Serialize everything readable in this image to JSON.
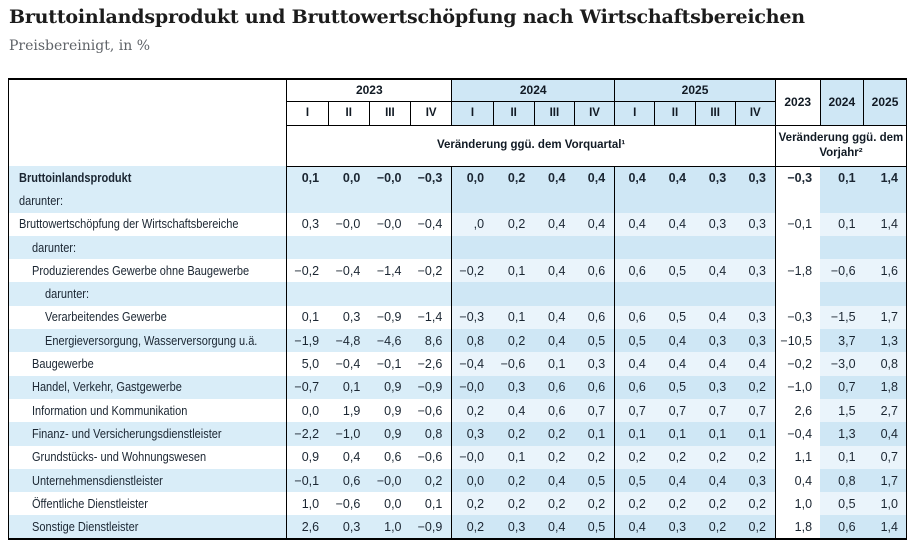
{
  "page": {
    "title": "Bruttoinlandsprodukt und Bruttowertschöpfung nach Wirtschaftsbereichen",
    "subtitle": "Preisbereinigt, in %"
  },
  "colors": {
    "header_blue": "#cfe7f5",
    "zebra_blue": "#d9edf8",
    "pale_blue": "#eaf4fb",
    "border_black": "#000000",
    "text": "#1b2632",
    "subtitle_gray": "#5f6368"
  },
  "table": {
    "quarter_groups": [
      {
        "year": "2023",
        "quarters": [
          "I",
          "II",
          "III",
          "IV"
        ],
        "highlighted": false
      },
      {
        "year": "2024",
        "quarters": [
          "I",
          "II",
          "III",
          "IV"
        ],
        "highlighted": true
      },
      {
        "year": "2025",
        "quarters": [
          "I",
          "II",
          "III",
          "IV"
        ],
        "highlighted": true
      }
    ],
    "annual_years": [
      {
        "year": "2023",
        "highlighted": false
      },
      {
        "year": "2024",
        "highlighted": true
      },
      {
        "year": "2025",
        "highlighted": true
      }
    ],
    "quarter_note": "Veränderung ggü. dem Vorquartal¹",
    "annual_note": "Veränderung ggü. dem Vorjahr²",
    "rows": [
      {
        "label": "Bruttoinlandsprodukt",
        "indent": 0,
        "bold": true,
        "shaded": true,
        "q2023": [
          "0,1",
          "0,0",
          "−0,0",
          "−0,3"
        ],
        "q2024": [
          "0,0",
          "0,2",
          "0,4",
          "0,4"
        ],
        "q2025": [
          "0,4",
          "0,4",
          "0,3",
          "0,3"
        ],
        "annual": [
          "−0,3",
          "0,1",
          "1,4"
        ]
      },
      {
        "label": "darunter:",
        "indent": 0,
        "bold": false,
        "shaded": true,
        "q2023": null,
        "q2024": null,
        "q2025": null,
        "annual": null
      },
      {
        "label": "Bruttowertschöpfung der Wirtschaftsbereiche",
        "indent": 0,
        "bold": false,
        "shaded": false,
        "q2023": [
          "0,3",
          "−0,0",
          "−0,0",
          "−0,4"
        ],
        "q2024": [
          ",0",
          "0,2",
          "0,4",
          "0,4"
        ],
        "q2025": [
          "0,4",
          "0,4",
          "0,3",
          "0,3"
        ],
        "annual": [
          "−0,1",
          "0,1",
          "1,4"
        ]
      },
      {
        "label": "darunter:",
        "indent": 1,
        "bold": false,
        "shaded": true,
        "q2023": null,
        "q2024": null,
        "q2025": null,
        "annual": null
      },
      {
        "label": "Produzierendes Gewerbe ohne Baugewerbe",
        "indent": 1,
        "bold": false,
        "shaded": false,
        "q2023": [
          "−0,2",
          "−0,4",
          "−1,4",
          "−0,2"
        ],
        "q2024": [
          "−0,2",
          "0,1",
          "0,4",
          "0,6"
        ],
        "q2025": [
          "0,6",
          "0,5",
          "0,4",
          "0,3"
        ],
        "annual": [
          "−1,8",
          "−0,6",
          "1,6"
        ]
      },
      {
        "label": "darunter:",
        "indent": 2,
        "bold": false,
        "shaded": true,
        "q2023": null,
        "q2024": null,
        "q2025": null,
        "annual": null
      },
      {
        "label": "Verarbeitendes Gewerbe",
        "indent": 2,
        "bold": false,
        "shaded": false,
        "q2023": [
          "0,1",
          "0,3",
          "−0,9",
          "−1,4"
        ],
        "q2024": [
          "−0,3",
          "0,1",
          "0,4",
          "0,6"
        ],
        "q2025": [
          "0,6",
          "0,5",
          "0,4",
          "0,3"
        ],
        "annual": [
          "−0,3",
          "−1,5",
          "1,7"
        ]
      },
      {
        "label": "Energieversorgung, Wasserversorgung u.ä.",
        "indent": 2,
        "bold": false,
        "shaded": true,
        "q2023": [
          "−1,9",
          "−4,8",
          "−4,6",
          "8,6"
        ],
        "q2024": [
          "0,8",
          "0,2",
          "0,4",
          "0,5"
        ],
        "q2025": [
          "0,5",
          "0,4",
          "0,3",
          "0,3"
        ],
        "annual": [
          "−10,5",
          "3,7",
          "1,3"
        ]
      },
      {
        "label": "Baugewerbe",
        "indent": 1,
        "bold": false,
        "shaded": false,
        "q2023": [
          "5,0",
          "−0,4",
          "−0,1",
          "−2,6"
        ],
        "q2024": [
          "−0,4",
          "−0,6",
          "0,1",
          "0,3"
        ],
        "q2025": [
          "0,4",
          "0,4",
          "0,4",
          "0,4"
        ],
        "annual": [
          "−0,2",
          "−3,0",
          "0,8"
        ]
      },
      {
        "label": "Handel, Verkehr, Gastgewerbe",
        "indent": 1,
        "bold": false,
        "shaded": true,
        "q2023": [
          "−0,7",
          "0,1",
          "0,9",
          "−0,9"
        ],
        "q2024": [
          "−0,0",
          "0,3",
          "0,6",
          "0,6"
        ],
        "q2025": [
          "0,6",
          "0,5",
          "0,3",
          "0,2"
        ],
        "annual": [
          "−1,0",
          "0,7",
          "1,8"
        ]
      },
      {
        "label": "Information und Kommunikation",
        "indent": 1,
        "bold": false,
        "shaded": false,
        "q2023": [
          "0,0",
          "1,9",
          "0,9",
          "−0,6"
        ],
        "q2024": [
          "0,2",
          "0,4",
          "0,6",
          "0,7"
        ],
        "q2025": [
          "0,7",
          "0,7",
          "0,7",
          "0,7"
        ],
        "annual": [
          "2,6",
          "1,5",
          "2,7"
        ]
      },
      {
        "label": "Finanz- und Versicherungsdienstleister",
        "indent": 1,
        "bold": false,
        "shaded": true,
        "q2023": [
          "−2,2",
          "−1,0",
          "0,9",
          "0,8"
        ],
        "q2024": [
          "0,3",
          "0,2",
          "0,2",
          "0,1"
        ],
        "q2025": [
          "0,1",
          "0,1",
          "0,1",
          "0,1"
        ],
        "annual": [
          "−0,4",
          "1,3",
          "0,4"
        ]
      },
      {
        "label": "Grundstücks- und Wohnungswesen",
        "indent": 1,
        "bold": false,
        "shaded": false,
        "q2023": [
          "0,9",
          "0,4",
          "0,6",
          "−0,6"
        ],
        "q2024": [
          "−0,0",
          "0,1",
          "0,2",
          "0,2"
        ],
        "q2025": [
          "0,2",
          "0,2",
          "0,2",
          "0,2"
        ],
        "annual": [
          "1,1",
          "0,1",
          "0,7"
        ]
      },
      {
        "label": "Unternehmensdienstleister",
        "indent": 1,
        "bold": false,
        "shaded": true,
        "q2023": [
          "−0,1",
          "0,6",
          "−0,0",
          "0,2"
        ],
        "q2024": [
          "0,0",
          "0,2",
          "0,4",
          "0,5"
        ],
        "q2025": [
          "0,5",
          "0,4",
          "0,4",
          "0,3"
        ],
        "annual": [
          "0,4",
          "0,8",
          "1,7"
        ]
      },
      {
        "label": "Öffentliche Dienstleister",
        "indent": 1,
        "bold": false,
        "shaded": false,
        "q2023": [
          "1,0",
          "−0,6",
          "0,0",
          "0,1"
        ],
        "q2024": [
          "0,2",
          "0,2",
          "0,2",
          "0,2"
        ],
        "q2025": [
          "0,2",
          "0,2",
          "0,2",
          "0,2"
        ],
        "annual": [
          "1,0",
          "0,5",
          "1,0"
        ]
      },
      {
        "label": "Sonstige Dienstleister",
        "indent": 1,
        "bold": false,
        "shaded": true,
        "q2023": [
          "2,6",
          "0,3",
          "1,0",
          "−0,9"
        ],
        "q2024": [
          "0,2",
          "0,3",
          "0,4",
          "0,5"
        ],
        "q2025": [
          "0,4",
          "0,3",
          "0,2",
          "0,2"
        ],
        "annual": [
          "1,8",
          "0,6",
          "1,4"
        ]
      }
    ]
  }
}
